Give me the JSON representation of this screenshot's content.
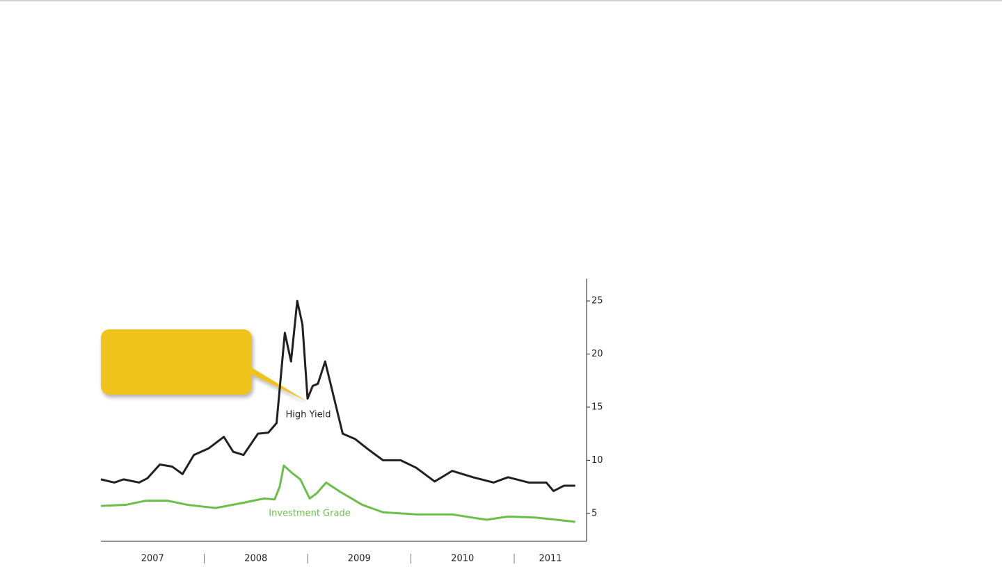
{
  "chart_data": {
    "type": "line",
    "series": [
      {
        "name": "High Yield",
        "color": "#231f20",
        "x": [
          2007.0,
          2007.13,
          2007.22,
          2007.37,
          2007.45,
          2007.57,
          2007.69,
          2007.79,
          2007.9,
          2008.04,
          2008.19,
          2008.28,
          2008.38,
          2008.52,
          2008.62,
          2008.7,
          2008.78,
          2008.84,
          2008.9,
          2008.95,
          2009.0,
          2009.05,
          2009.1,
          2009.17,
          2009.24,
          2009.34,
          2009.46,
          2009.59,
          2009.73,
          2009.9,
          2010.05,
          2010.23,
          2010.4,
          2010.6,
          2010.8,
          2010.94,
          2011.14,
          2011.31,
          2011.38,
          2011.48,
          2011.59
        ],
        "values": [
          8.2,
          7.9,
          8.2,
          7.9,
          8.3,
          9.6,
          9.4,
          8.7,
          10.5,
          11.1,
          12.2,
          10.8,
          10.5,
          12.5,
          12.6,
          13.5,
          22,
          19.3,
          25,
          22.8,
          15.8,
          17.0,
          17.2,
          19.3,
          16.5,
          12.5,
          12.0,
          11.0,
          10.0,
          10.0,
          9.3,
          8.0,
          9.0,
          8.4,
          7.9,
          8.4,
          7.9,
          7.9,
          7.1,
          7.6,
          7.6
        ]
      },
      {
        "name": "Investment Grade",
        "color": "#6abf4b",
        "x": [
          2007.0,
          2007.24,
          2007.44,
          2007.64,
          2007.84,
          2008.11,
          2008.38,
          2008.58,
          2008.68,
          2008.73,
          2008.77,
          2008.85,
          2008.93,
          2009.02,
          2009.09,
          2009.18,
          2009.32,
          2009.53,
          2009.73,
          2010.06,
          2010.4,
          2010.73,
          2010.94,
          2011.21,
          2011.41,
          2011.59
        ],
        "values": [
          5.7,
          5.8,
          6.2,
          6.2,
          5.8,
          5.5,
          6.0,
          6.4,
          6.3,
          7.5,
          9.5,
          8.8,
          8.2,
          6.4,
          6.9,
          7.9,
          7.0,
          5.8,
          5.1,
          4.9,
          4.9,
          4.4,
          4.7,
          4.6,
          4.4,
          4.2
        ]
      }
    ],
    "xlim": [
      2007,
      2011.7
    ],
    "xticks": [
      {
        "value": 2007.5,
        "label": "2007"
      },
      {
        "value": 2008.5,
        "label": "2008"
      },
      {
        "value": 2009.5,
        "label": "2009"
      },
      {
        "value": 2010.5,
        "label": "2010"
      },
      {
        "value": 2011.35,
        "label": "2011"
      }
    ],
    "ylim": [
      2.5,
      27.1
    ],
    "yticks": [
      5,
      10,
      15,
      20,
      25
    ],
    "y_axis_side": "right"
  }
}
